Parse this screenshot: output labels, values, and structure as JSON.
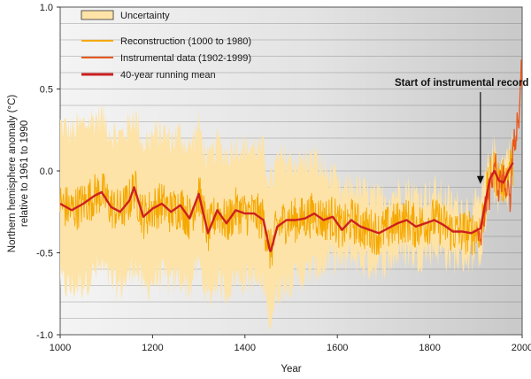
{
  "chart_data": {
    "type": "line",
    "title": "",
    "xlabel": "Year",
    "ylabel": [
      "Northern hemisphere anomaly (°C)",
      "relative to 1961 to 1990"
    ],
    "xlim": [
      1000,
      2000
    ],
    "ylim": [
      -1.0,
      1.0
    ],
    "x_ticks": [
      1000,
      1200,
      1400,
      1600,
      1800,
      2000
    ],
    "y_ticks": [
      -1.0,
      -0.5,
      0.0,
      0.5,
      1.0
    ],
    "y_tick_labels": [
      "-1.0",
      "-0.5",
      "0.0",
      "0.5",
      "1.0"
    ],
    "grid": "horizontal",
    "legend_position": "top-left",
    "legend": [
      {
        "label": "Uncertainty",
        "kind": "area",
        "color": "#fde3a7"
      },
      {
        "label": "Reconstruction (1000 to 1980)",
        "kind": "line",
        "color": "#f5a800"
      },
      {
        "label": "Instrumental data (1902-1999)",
        "kind": "line",
        "color": "#e8581c"
      },
      {
        "label": "40-year running mean",
        "kind": "line",
        "color": "#cc2020"
      }
    ],
    "annotation": {
      "text": "Start of instrumental record",
      "x": 1902,
      "y_arrow_tip": -0.08
    },
    "running_mean": {
      "name": "40-year running mean",
      "x": [
        1000,
        1025,
        1050,
        1075,
        1090,
        1110,
        1130,
        1150,
        1160,
        1180,
        1200,
        1220,
        1240,
        1260,
        1280,
        1300,
        1320,
        1340,
        1360,
        1380,
        1400,
        1420,
        1440,
        1455,
        1470,
        1490,
        1510,
        1530,
        1550,
        1570,
        1590,
        1610,
        1630,
        1650,
        1670,
        1690,
        1710,
        1730,
        1750,
        1770,
        1790,
        1810,
        1830,
        1850,
        1870,
        1890,
        1910,
        1920,
        1930,
        1940,
        1950,
        1960,
        1970,
        1980
      ],
      "y": [
        -0.2,
        -0.24,
        -0.2,
        -0.15,
        -0.13,
        -0.22,
        -0.25,
        -0.18,
        -0.1,
        -0.28,
        -0.23,
        -0.2,
        -0.25,
        -0.21,
        -0.29,
        -0.14,
        -0.38,
        -0.24,
        -0.32,
        -0.24,
        -0.26,
        -0.26,
        -0.3,
        -0.5,
        -0.34,
        -0.3,
        -0.3,
        -0.29,
        -0.26,
        -0.3,
        -0.28,
        -0.36,
        -0.3,
        -0.34,
        -0.36,
        -0.38,
        -0.35,
        -0.32,
        -0.3,
        -0.34,
        -0.32,
        -0.3,
        -0.33,
        -0.37,
        -0.37,
        -0.38,
        -0.35,
        -0.2,
        -0.05,
        0.0,
        -0.06,
        -0.07,
        0.0,
        0.05
      ]
    },
    "reconstruction": {
      "name": "Reconstruction (1000 to 1980)",
      "x_range": [
        1000,
        1980
      ],
      "amplitude": 0.14,
      "description_values_follow_running_mean": true
    },
    "uncertainty": {
      "name": "Uncertainty",
      "x": [
        1000,
        1050,
        1100,
        1150,
        1200,
        1250,
        1300,
        1350,
        1400,
        1450,
        1500,
        1550,
        1600,
        1650,
        1700,
        1750,
        1800,
        1850,
        1900,
        1950,
        1980
      ],
      "half_width": [
        0.48,
        0.48,
        0.46,
        0.46,
        0.44,
        0.44,
        0.42,
        0.42,
        0.4,
        0.42,
        0.36,
        0.34,
        0.22,
        0.22,
        0.2,
        0.2,
        0.18,
        0.17,
        0.15,
        0.12,
        0.12
      ]
    },
    "instrumental": {
      "name": "Instrumental data (1902-1999)",
      "x": [
        1902,
        1905,
        1908,
        1911,
        1914,
        1917,
        1920,
        1923,
        1926,
        1929,
        1932,
        1935,
        1938,
        1941,
        1944,
        1947,
        1950,
        1953,
        1956,
        1959,
        1962,
        1965,
        1968,
        1971,
        1974,
        1977,
        1980,
        1983,
        1986,
        1989,
        1992,
        1995,
        1998,
        1999
      ],
      "y": [
        -0.3,
        -0.44,
        -0.4,
        -0.46,
        -0.3,
        -0.36,
        -0.2,
        -0.25,
        -0.1,
        -0.18,
        -0.02,
        -0.08,
        0.02,
        0.08,
        0.05,
        -0.12,
        -0.15,
        0.05,
        -0.1,
        0.0,
        -0.05,
        -0.15,
        -0.12,
        -0.1,
        -0.2,
        -0.02,
        0.15,
        0.2,
        0.12,
        0.3,
        0.25,
        0.4,
        0.62,
        0.5
      ]
    }
  }
}
